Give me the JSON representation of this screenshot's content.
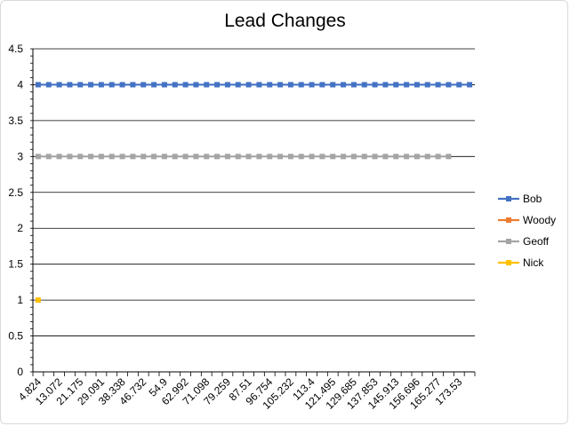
{
  "chart_data": {
    "type": "line",
    "title": "Lead Changes",
    "xlabel": "",
    "ylabel": "",
    "ylim": [
      0,
      4.5
    ],
    "y_ticks": [
      "0",
      "0.5",
      "1",
      "1.5",
      "2",
      "2.5",
      "3",
      "3.5",
      "4",
      "4.5"
    ],
    "x_tick_labels": [
      "4.824",
      "13.072",
      "21.175",
      "29.091",
      "38.338",
      "46.732",
      "54.9",
      "62.992",
      "71.098",
      "79.259",
      "87.51",
      "96.754",
      "105.232",
      "113.4",
      "121.495",
      "129.685",
      "137.853",
      "145.913",
      "156.696",
      "165.277",
      "173.53"
    ],
    "category_count": 42,
    "grid": true,
    "legend_position": "right",
    "series": [
      {
        "name": "Bob",
        "color": "#4472C4",
        "start_index": 0,
        "end_index": 41,
        "value": 4
      },
      {
        "name": "Woody",
        "color": "#ED7D31",
        "start_index": null,
        "end_index": null,
        "value": null
      },
      {
        "name": "Geoff",
        "color": "#A5A5A5",
        "start_index": 0,
        "end_index": 39,
        "value": 3
      },
      {
        "name": "Nick",
        "color": "#FFC000",
        "start_index": 0,
        "end_index": 0,
        "value": 1
      }
    ]
  }
}
